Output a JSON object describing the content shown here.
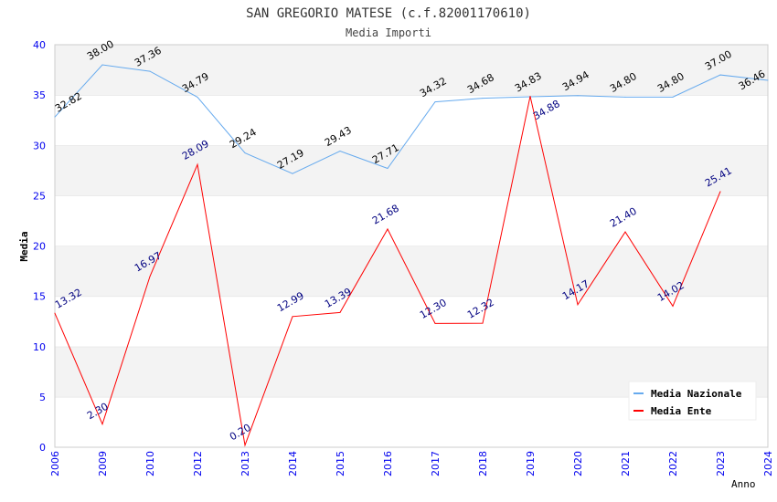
{
  "chart_data": {
    "type": "line",
    "title": "SAN GREGORIO MATESE (c.f.82001170610)",
    "subtitle": "Media Importi",
    "xlabel": "Anno",
    "ylabel": "Media",
    "ylim": [
      0,
      40
    ],
    "yticks": [
      "0",
      "5",
      "10",
      "15",
      "20",
      "25",
      "30",
      "35",
      "40"
    ],
    "categories": [
      "2006",
      "2009",
      "2010",
      "2012",
      "2013",
      "2014",
      "2015",
      "2016",
      "2017",
      "2018",
      "2019",
      "2020",
      "2021",
      "2022",
      "2023",
      "2024"
    ],
    "legend_position": "top-right",
    "series": [
      {
        "name": "Media Nazionale",
        "color": "#66aaee",
        "label_color": "#000000",
        "values": [
          32.82,
          38.0,
          37.36,
          34.79,
          29.24,
          27.19,
          29.43,
          27.71,
          34.32,
          34.68,
          34.83,
          34.94,
          34.8,
          34.8,
          37.0,
          36.46
        ]
      },
      {
        "name": "Media Ente",
        "color": "#ff0000",
        "label_color": "#000080",
        "values": [
          13.32,
          2.3,
          16.97,
          28.09,
          0.2,
          12.99,
          13.39,
          21.68,
          12.3,
          12.32,
          34.88,
          14.17,
          21.4,
          14.02,
          25.41,
          null
        ]
      }
    ]
  }
}
